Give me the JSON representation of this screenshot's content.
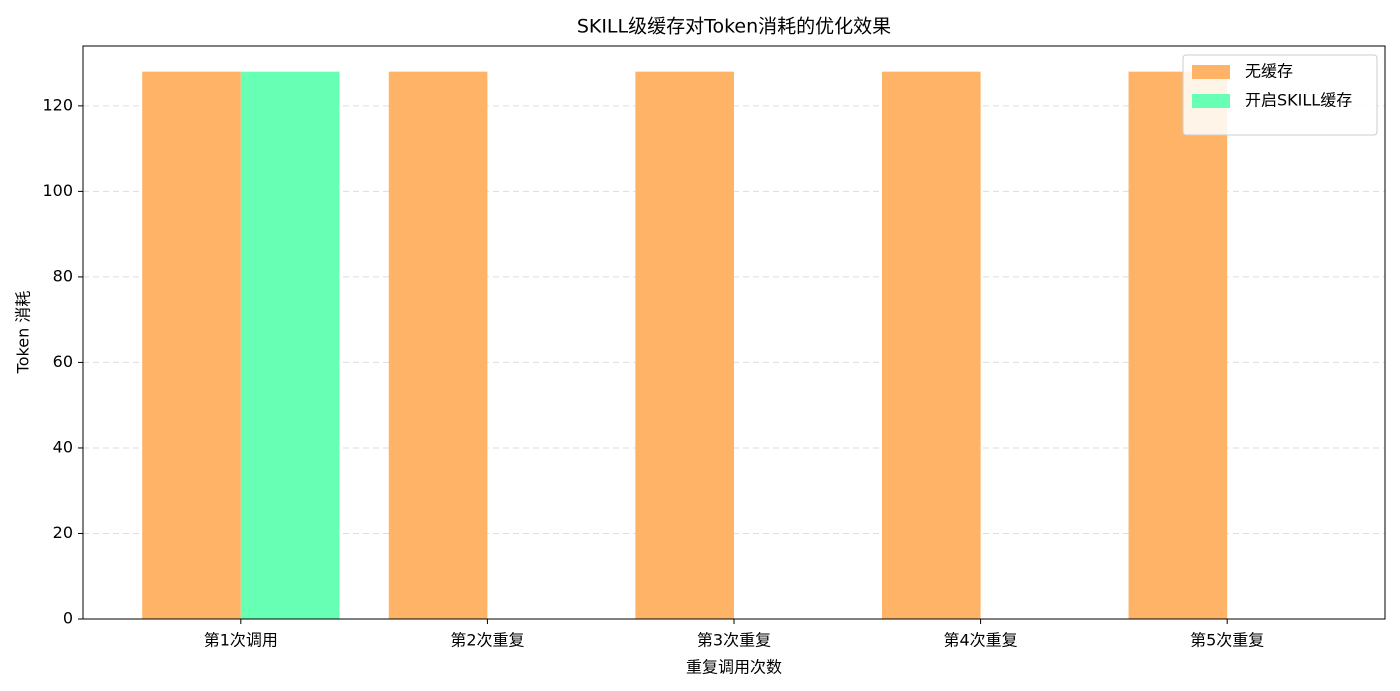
{
  "chart_data": {
    "type": "bar",
    "title": "SKILL级缓存对Token消耗的优化效果",
    "x_label": "重复调用次数",
    "y_label": "Token 消耗",
    "categories": [
      "第1次调用",
      "第2次重复",
      "第3次重复",
      "第4次重复",
      "第5次重复"
    ],
    "series": [
      {
        "name": "无缓存",
        "color": "#ffb366",
        "values": [
          128,
          128,
          128,
          128,
          128
        ]
      },
      {
        "name": "开启SKILL缓存",
        "color": "#66ffb3",
        "values": [
          128,
          0,
          0,
          0,
          0
        ]
      }
    ],
    "ylim": [
      0,
      134
    ],
    "yticks": [
      0,
      20,
      40,
      60,
      80,
      100,
      120
    ],
    "grid": true,
    "legend": "upper right"
  }
}
